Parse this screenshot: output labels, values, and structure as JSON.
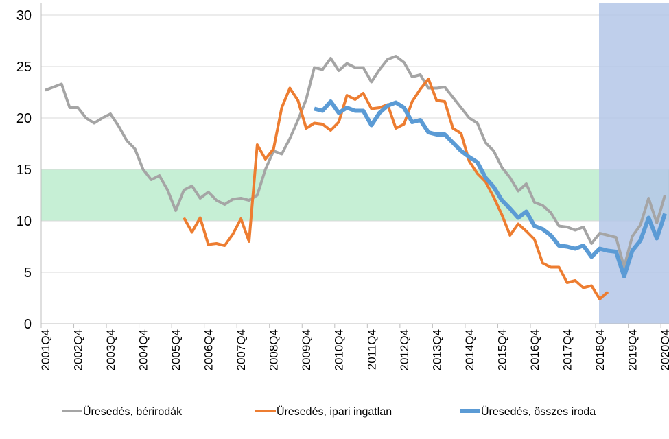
{
  "chart_data": {
    "type": "line",
    "categories": [
      "2001Q4",
      null,
      null,
      null,
      "2002Q4",
      null,
      null,
      null,
      "2003Q4",
      null,
      null,
      null,
      "2004Q4",
      null,
      null,
      null,
      "2005Q4",
      null,
      null,
      null,
      "2006Q4",
      null,
      null,
      null,
      "2007Q4",
      null,
      null,
      null,
      "2008Q4",
      null,
      null,
      null,
      "2009Q4",
      null,
      null,
      null,
      "2010Q4",
      null,
      null,
      null,
      "2011Q4",
      null,
      null,
      null,
      "2012Q4",
      null,
      null,
      null,
      "2013Q4",
      null,
      null,
      null,
      "2014Q4",
      null,
      null,
      null,
      "2015Q4",
      null,
      null,
      null,
      "2016Q4",
      null,
      null,
      null,
      "2017Q4",
      null,
      null,
      null,
      "2018Q4",
      null,
      null,
      null,
      "2019Q4",
      null,
      null,
      null,
      "2020Q4"
    ],
    "series": [
      {
        "name": "Üresedés, bérirodák",
        "color": "#a5a5a5",
        "values": [
          22.7,
          23.0,
          23.3,
          21.0,
          21.0,
          20.0,
          19.5,
          20.0,
          20.4,
          19.2,
          17.8,
          17.0,
          15.0,
          14.0,
          14.4,
          13.0,
          11.0,
          13.0,
          13.4,
          12.2,
          12.8,
          12.0,
          11.6,
          12.1,
          12.2,
          12.0,
          12.5,
          15.0,
          16.8,
          16.5,
          18.0,
          19.8,
          21.8,
          24.9,
          24.7,
          25.8,
          24.6,
          25.3,
          24.9,
          24.9,
          23.5,
          24.7,
          25.7,
          26.0,
          25.4,
          24.0,
          24.2,
          22.9,
          22.9,
          23.0,
          22.0,
          21.0,
          20.0,
          19.5,
          17.6,
          16.8,
          15.2,
          14.2,
          12.9,
          13.6,
          11.8,
          11.5,
          10.8,
          9.5,
          9.4,
          9.1,
          9.4,
          7.8,
          8.8,
          8.6,
          8.4,
          5.5,
          8.5,
          9.6,
          12.2,
          9.8,
          12.5
        ]
      },
      {
        "name": "Üresedés, ipari ingatlan",
        "color": "#ed7d31",
        "values": [
          null,
          null,
          null,
          null,
          null,
          null,
          null,
          null,
          null,
          null,
          null,
          null,
          null,
          null,
          null,
          null,
          null,
          10.3,
          8.9,
          10.3,
          7.7,
          7.8,
          7.6,
          8.7,
          10.2,
          8.0,
          17.4,
          16.0,
          17.0,
          21.0,
          22.9,
          21.7,
          19.0,
          19.5,
          19.4,
          18.8,
          19.6,
          22.2,
          21.8,
          22.4,
          20.9,
          21.0,
          21.3,
          19.0,
          19.4,
          21.6,
          22.8,
          23.8,
          21.7,
          21.6,
          19.0,
          18.5,
          15.8,
          14.6,
          13.8,
          12.3,
          10.6,
          8.6,
          9.7,
          9.0,
          8.2,
          5.9,
          5.5,
          5.5,
          4.0,
          4.2,
          3.5,
          3.7,
          2.4,
          3.1,
          null,
          null,
          null,
          null,
          null,
          null,
          null
        ]
      },
      {
        "name": "Üresedés, összes iroda",
        "color": "#5b9bd5",
        "values": [
          null,
          null,
          null,
          null,
          null,
          null,
          null,
          null,
          null,
          null,
          null,
          null,
          null,
          null,
          null,
          null,
          null,
          null,
          null,
          null,
          null,
          null,
          null,
          null,
          null,
          null,
          null,
          null,
          null,
          null,
          null,
          null,
          null,
          20.9,
          20.7,
          21.6,
          20.5,
          21.0,
          20.7,
          20.7,
          19.3,
          20.5,
          21.2,
          21.5,
          21.0,
          19.6,
          19.8,
          18.6,
          18.4,
          18.4,
          17.6,
          16.8,
          16.2,
          15.7,
          14.2,
          13.3,
          12.0,
          11.2,
          10.3,
          10.9,
          9.5,
          9.2,
          8.6,
          7.6,
          7.5,
          7.3,
          7.6,
          6.5,
          7.3,
          7.1,
          7.0,
          4.6,
          7.1,
          8.1,
          10.3,
          8.3,
          10.7
        ]
      }
    ],
    "ylim": [
      0,
      30
    ],
    "yticks": [
      0,
      5,
      10,
      15,
      20,
      25,
      30
    ],
    "grid": true,
    "band": [
      10,
      15
    ],
    "legend": "bottom"
  }
}
